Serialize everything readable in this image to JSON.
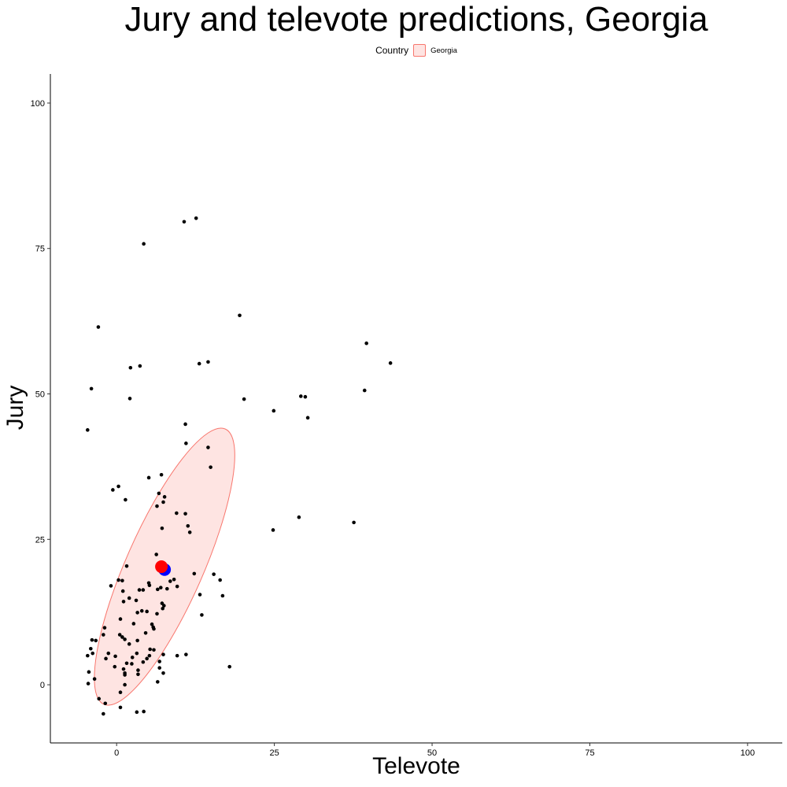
{
  "chart_data": {
    "type": "scatter",
    "title": "Jury and televote predictions, Georgia",
    "xlabel": "Televote",
    "ylabel": "Jury",
    "xlim": [
      -10.5,
      105.5
    ],
    "ylim": [
      -10,
      105
    ],
    "xticks": [
      0,
      25,
      50,
      75,
      100
    ],
    "yticks": [
      0,
      25,
      50,
      75,
      100
    ],
    "grid": false,
    "legend": {
      "position": "top",
      "title": "Country",
      "entries": [
        {
          "label": "Georgia",
          "fill": "#F8766D",
          "fill_opacity": 0.2,
          "stroke": "#F8766D"
        }
      ]
    },
    "colors": {
      "points": "#000000",
      "ellipse": "#F8766D",
      "mean_red": "#FF0000",
      "mean_blue": "#0000FF"
    },
    "ellipse": {
      "center": [
        7.6,
        20.3
      ],
      "rx": 10.8,
      "ry": 64.8,
      "rotation_deg": 23.8,
      "note_units": "ellipse radii given in screen-scaled data units"
    },
    "highlight_points": [
      {
        "name": "Georgia (blue)",
        "x": 7.6,
        "y": 19.8,
        "color": "#0000FF"
      },
      {
        "name": "Georgia (red)",
        "x": 7.1,
        "y": 20.3,
        "color": "#FF0000"
      }
    ],
    "points": [
      [
        10.7,
        79.6
      ],
      [
        12.6,
        80.2
      ],
      [
        4.3,
        75.8
      ],
      [
        -2.9,
        61.5
      ],
      [
        19.5,
        63.5
      ],
      [
        39.6,
        58.7
      ],
      [
        43.4,
        55.3
      ],
      [
        39.3,
        50.6
      ],
      [
        -4.0,
        50.9
      ],
      [
        -4.6,
        43.8
      ],
      [
        2.2,
        54.5
      ],
      [
        3.7,
        54.8
      ],
      [
        2.1,
        49.2
      ],
      [
        13.1,
        55.2
      ],
      [
        14.5,
        55.5
      ],
      [
        20.2,
        49.1
      ],
      [
        24.9,
        47.1
      ],
      [
        29.2,
        49.6
      ],
      [
        29.9,
        49.5
      ],
      [
        30.3,
        45.9
      ],
      [
        10.9,
        44.8
      ],
      [
        11.0,
        41.5
      ],
      [
        14.5,
        40.8
      ],
      [
        14.9,
        37.4
      ],
      [
        5.1,
        35.6
      ],
      [
        7.1,
        36.1
      ],
      [
        0.3,
        34.1
      ],
      [
        -0.6,
        33.5
      ],
      [
        1.4,
        31.8
      ],
      [
        6.7,
        32.9
      ],
      [
        7.6,
        32.3
      ],
      [
        7.4,
        31.4
      ],
      [
        6.4,
        30.7
      ],
      [
        9.5,
        29.5
      ],
      [
        10.9,
        29.4
      ],
      [
        11.3,
        27.3
      ],
      [
        11.6,
        26.2
      ],
      [
        7.2,
        26.9
      ],
      [
        24.8,
        26.6
      ],
      [
        28.9,
        28.8
      ],
      [
        37.6,
        27.9
      ],
      [
        6.3,
        22.4
      ],
      [
        1.6,
        20.4
      ],
      [
        12.3,
        19.1
      ],
      [
        15.4,
        19.0
      ],
      [
        16.4,
        18.0
      ],
      [
        16.8,
        15.3
      ],
      [
        13.2,
        15.5
      ],
      [
        13.5,
        12.0
      ],
      [
        9.1,
        18.1
      ],
      [
        9.6,
        16.9
      ],
      [
        -0.9,
        17.0
      ],
      [
        0.3,
        18.0
      ],
      [
        0.9,
        17.9
      ],
      [
        1.0,
        16.1
      ],
      [
        5.1,
        17.5
      ],
      [
        5.2,
        17.1
      ],
      [
        3.6,
        16.3
      ],
      [
        4.2,
        16.3
      ],
      [
        6.5,
        16.4
      ],
      [
        7.0,
        16.7
      ],
      [
        8.0,
        16.5
      ],
      [
        1.1,
        14.3
      ],
      [
        2.0,
        14.9
      ],
      [
        3.1,
        14.5
      ],
      [
        7.2,
        14.0
      ],
      [
        7.5,
        13.6
      ],
      [
        7.3,
        13.1
      ],
      [
        3.3,
        12.4
      ],
      [
        4.0,
        12.7
      ],
      [
        4.8,
        12.6
      ],
      [
        6.4,
        12.2
      ],
      [
        0.6,
        11.3
      ],
      [
        2.7,
        10.5
      ],
      [
        5.6,
        10.4
      ],
      [
        5.8,
        9.9
      ],
      [
        0.5,
        8.6
      ],
      [
        0.9,
        8.2
      ],
      [
        1.3,
        7.8
      ],
      [
        2.0,
        7.0
      ],
      [
        3.3,
        7.6
      ],
      [
        4.6,
        8.9
      ],
      [
        -1.9,
        9.8
      ],
      [
        -2.1,
        8.6
      ],
      [
        -3.3,
        7.6
      ],
      [
        -3.9,
        7.7
      ],
      [
        -4.1,
        6.2
      ],
      [
        -3.8,
        5.4
      ],
      [
        -4.6,
        5.0
      ],
      [
        -1.3,
        5.4
      ],
      [
        -0.2,
        4.9
      ],
      [
        2.5,
        4.7
      ],
      [
        3.2,
        5.4
      ],
      [
        4.8,
        4.5
      ],
      [
        5.2,
        5.0
      ],
      [
        5.3,
        6.1
      ],
      [
        7.4,
        5.2
      ],
      [
        9.6,
        5.0
      ],
      [
        11.0,
        5.2
      ],
      [
        -1.7,
        4.5
      ],
      [
        1.6,
        3.7
      ],
      [
        4.2,
        3.9
      ],
      [
        6.8,
        4.0
      ],
      [
        -0.3,
        3.1
      ],
      [
        1.1,
        2.7
      ],
      [
        3.4,
        2.5
      ],
      [
        6.8,
        2.9
      ],
      [
        -4.4,
        2.2
      ],
      [
        -3.5,
        1.0
      ],
      [
        1.3,
        1.7
      ],
      [
        3.4,
        1.8
      ],
      [
        7.4,
        2.0
      ],
      [
        6.5,
        0.5
      ],
      [
        -4.5,
        0.2
      ],
      [
        1.3,
        0.0
      ],
      [
        0.6,
        -1.3
      ],
      [
        -2.8,
        -2.4
      ],
      [
        -1.8,
        -3.2
      ],
      [
        0.6,
        -3.9
      ],
      [
        -2.1,
        -5.0
      ],
      [
        3.2,
        -4.7
      ],
      [
        4.3,
        -4.6
      ],
      [
        17.9,
        3.1
      ],
      [
        1.3,
        2.0
      ],
      [
        5.9,
        6.0
      ],
      [
        8.5,
        17.8
      ],
      [
        5.9,
        9.6
      ],
      [
        2.4,
        3.6
      ]
    ]
  }
}
